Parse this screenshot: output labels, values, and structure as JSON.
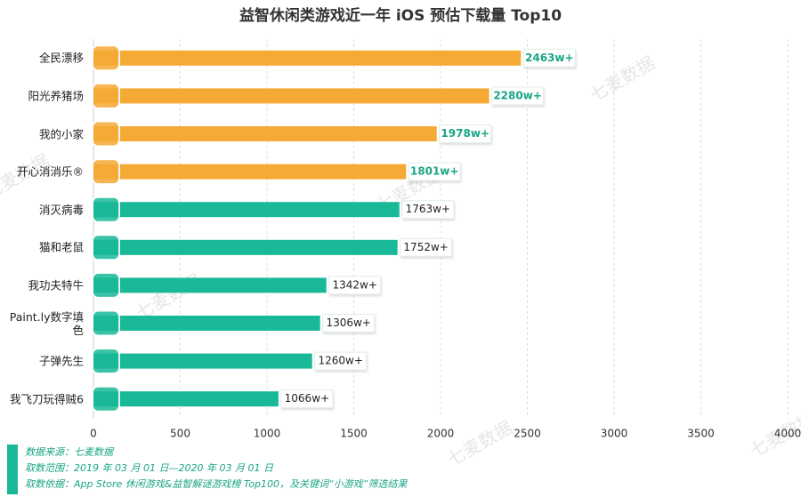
{
  "chart_data": {
    "type": "bar",
    "orientation": "horizontal",
    "title": "益智休闲类游戏近一年 iOS 预估下载量 Top10",
    "categories": [
      "全民漂移",
      "阳光养猪场",
      "我的小家",
      "开心消消乐®",
      "消灭病毒",
      "猫和老鼠",
      "我功夫特牛",
      "Paint.ly数字填色",
      "子弹先生",
      "我飞刀玩得贼6"
    ],
    "values": [
      2463,
      2280,
      1978,
      1801,
      1763,
      1752,
      1342,
      1306,
      1260,
      1066
    ],
    "value_labels": [
      "2463w+",
      "2280w+",
      "1978w+",
      "1801w+",
      "1763w+",
      "1752w+",
      "1342w+",
      "1306w+",
      "1260w+",
      "1066w+"
    ],
    "colors": [
      "#f5aa36",
      "#f5aa36",
      "#f5aa36",
      "#f5aa36",
      "#19b998",
      "#19b998",
      "#19b998",
      "#19b998",
      "#19b998",
      "#19b998"
    ],
    "xlim": [
      0,
      4000
    ],
    "xticks": [
      0,
      500,
      1000,
      1500,
      2000,
      2500,
      3000,
      3500,
      4000
    ],
    "grid": true,
    "watermark": "七麦数据",
    "notes": [
      "数据来源：七麦数据",
      "取数范围：2019 年 03 月 01 日—2020 年 03 月 01 日",
      "取数依据：App Store 休闲游戏&益智解谜游戏榜 Top100，及关键词“小游戏”筛选结果"
    ]
  }
}
